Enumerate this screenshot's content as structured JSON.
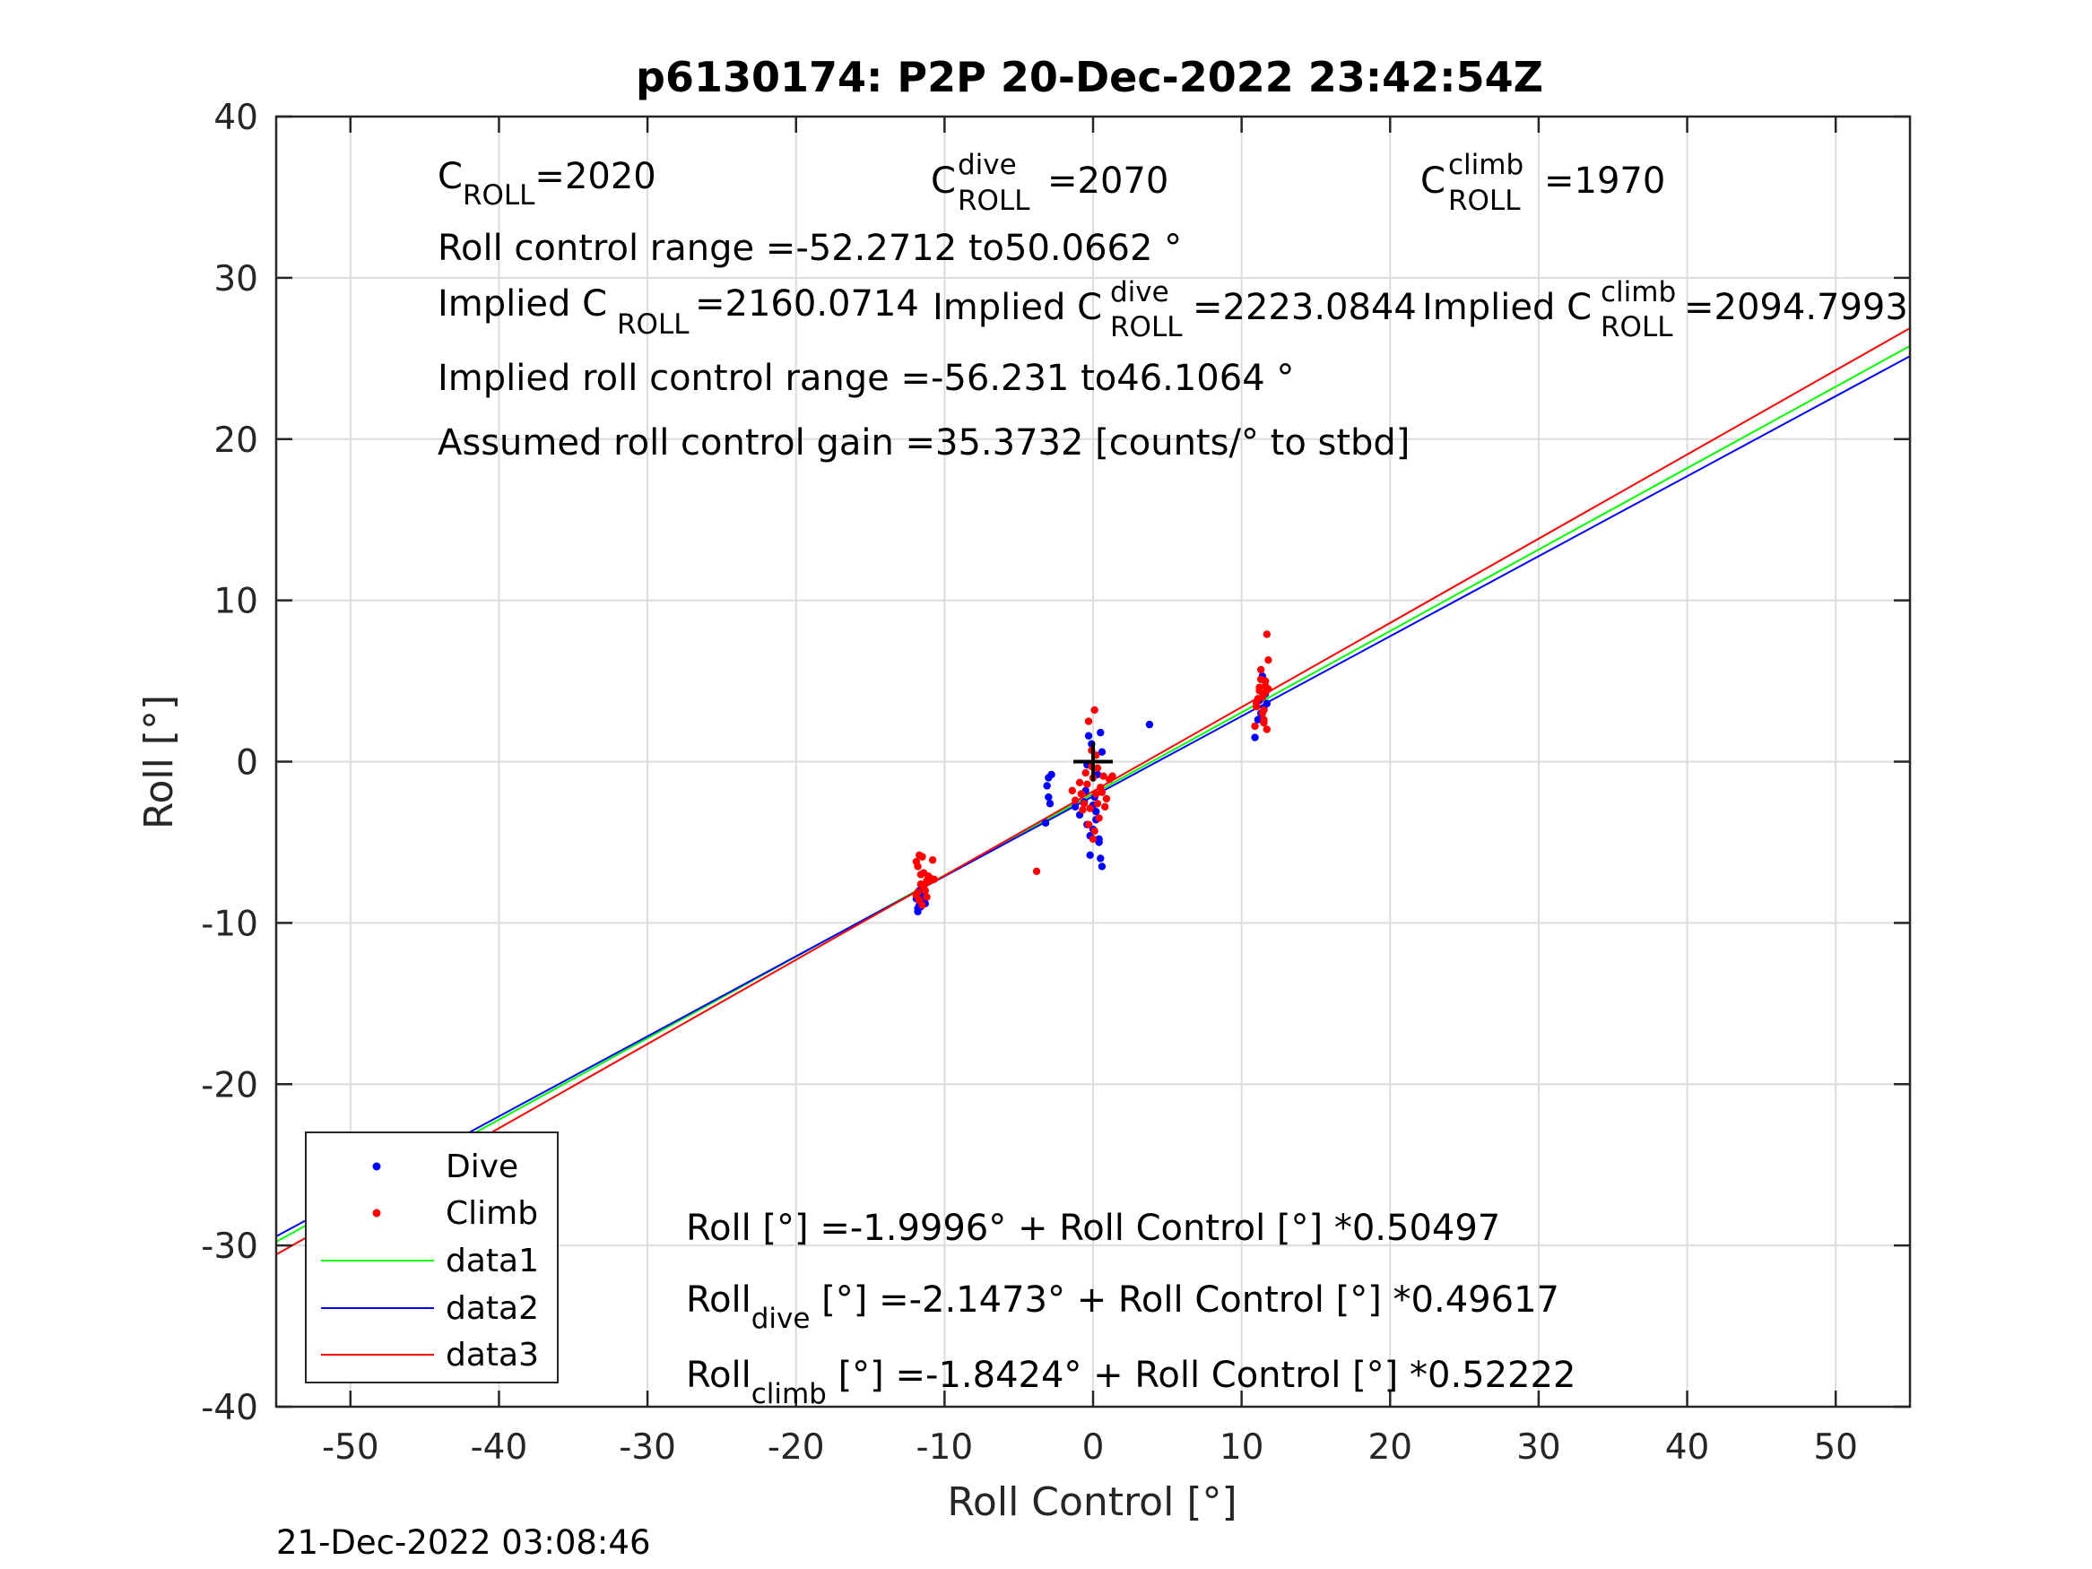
{
  "chart_data": {
    "type": "scatter",
    "title": "p6130174: P2P 20-Dec-2022 23:42:54Z",
    "xlabel": "Roll Control [°]",
    "ylabel": "Roll [°]",
    "xlim": [
      -55,
      55
    ],
    "ylim": [
      -40,
      40
    ],
    "x_ticks": [
      -50,
      -40,
      -30,
      -20,
      -10,
      0,
      10,
      20,
      30,
      40,
      50
    ],
    "y_ticks": [
      -40,
      -30,
      -20,
      -10,
      0,
      10,
      20,
      30,
      40
    ],
    "x_tick_labels": [
      "-50",
      "-40",
      "-30",
      "-20",
      "-10",
      "0",
      "10",
      "20",
      "30",
      "40",
      "50"
    ],
    "y_tick_labels": [
      "-40",
      "-30",
      "-20",
      "-10",
      "0",
      "10",
      "20",
      "30",
      "40"
    ],
    "grid": true,
    "legend_position": "bottom-left",
    "series": [
      {
        "name": "Dive",
        "kind": "points",
        "color": "#0000ff",
        "x": [
          -11.8,
          -11.7,
          -11.6,
          -11.9,
          -11.5,
          -11.8,
          -11.4,
          -11.7,
          -11.6,
          -11.3,
          -3.0,
          -3.1,
          -2.9,
          -3.2,
          -3.0,
          -2.8,
          -1.2,
          -0.9,
          -0.6,
          -0.4,
          -0.2,
          0.0,
          0.2,
          0.4,
          0.5,
          0.6,
          -0.5,
          -0.3,
          -0.1,
          0.3,
          0.1,
          -0.2,
          0.4,
          0.2,
          0.6,
          0.5,
          -0.4,
          0.0,
          3.8,
          10.9,
          11.1,
          11.3,
          11.5,
          11.2,
          11.6,
          11.4,
          11.7
        ],
        "y": [
          -9.3,
          -8.9,
          -9.0,
          -8.5,
          -8.7,
          -9.1,
          -8.2,
          -8.0,
          -8.4,
          -8.8,
          -1.0,
          -1.5,
          -2.6,
          -3.8,
          -2.2,
          -0.8,
          -2.8,
          -3.3,
          -2.5,
          -3.9,
          -4.6,
          -4.2,
          -3.1,
          -5.0,
          -6.0,
          -6.5,
          -1.8,
          1.6,
          1.1,
          -0.8,
          -2.2,
          -5.8,
          -4.8,
          -3.6,
          0.6,
          1.8,
          -0.2,
          -2.7,
          2.3,
          1.5,
          2.6,
          3.0,
          3.3,
          3.8,
          4.2,
          5.3,
          3.6
        ]
      },
      {
        "name": "Climb",
        "kind": "points",
        "color": "#ff0000",
        "x": [
          -11.9,
          -11.7,
          -11.5,
          -11.8,
          -11.6,
          -11.2,
          -11.0,
          -10.8,
          -11.4,
          -11.9,
          -11.3,
          -11.1,
          -11.6,
          -11.7,
          -11.5,
          -10.9,
          -11.8,
          -11.4,
          -10.7,
          -11.2,
          -3.8,
          -1.4,
          -1.2,
          -0.9,
          -0.7,
          -0.5,
          -0.3,
          -0.1,
          0.1,
          0.3,
          0.5,
          0.7,
          0.9,
          1.1,
          1.3,
          -0.2,
          0.0,
          0.2,
          -0.4,
          0.4,
          -0.6,
          0.6,
          -0.1,
          0.2,
          -0.3,
          0.0,
          0.3,
          0.1,
          0.8,
          -0.8,
          10.9,
          11.0,
          11.2,
          11.4,
          11.5,
          11.6,
          11.7,
          11.8,
          11.3,
          11.1,
          11.5,
          11.7,
          11.2,
          11.6,
          11.4,
          11.8,
          11.0,
          11.3,
          11.5,
          11.6
        ],
        "y": [
          -6.2,
          -5.8,
          -5.9,
          -6.5,
          -7.0,
          -7.4,
          -7.2,
          -6.1,
          -7.8,
          -8.3,
          -8.0,
          -7.1,
          -7.6,
          -8.6,
          -8.9,
          -7.3,
          -8.1,
          -6.9,
          -7.3,
          -8.4,
          -6.8,
          -1.8,
          -2.4,
          -1.3,
          -3.0,
          -0.7,
          2.5,
          0.7,
          3.2,
          -0.4,
          -1.6,
          -0.9,
          -2.3,
          -1.1,
          -0.9,
          -2.9,
          -4.8,
          -2.0,
          -1.4,
          -3.5,
          -2.6,
          -1.9,
          -0.3,
          0.4,
          -3.9,
          -1.0,
          -2.6,
          -4.3,
          -2.8,
          -2.0,
          2.2,
          3.4,
          4.6,
          4.0,
          3.2,
          4.3,
          7.9,
          6.3,
          5.7,
          3.9,
          2.6,
          2.0,
          4.4,
          5.0,
          3.0,
          4.5,
          3.6,
          5.1,
          2.4,
          4.7
        ]
      },
      {
        "name": "data1",
        "kind": "line",
        "color": "#00ff00",
        "intercept": -1.9996,
        "slope": 0.50497,
        "x": [
          -55,
          55
        ]
      },
      {
        "name": "data2",
        "kind": "line",
        "color": "#0000ff",
        "intercept": -2.1473,
        "slope": 0.49617,
        "x": [
          -55,
          55
        ]
      },
      {
        "name": "data3",
        "kind": "line",
        "color": "#ff0000",
        "intercept": -1.8424,
        "slope": 0.52222,
        "x": [
          -55,
          55
        ]
      }
    ],
    "marker": {
      "kind": "plus",
      "color": "#000000",
      "x": 0,
      "y": 0
    }
  },
  "annotations": {
    "c_roll": {
      "base": "C",
      "sub": "ROLL",
      "value": "=2020"
    },
    "c_roll_dive": {
      "base": "C",
      "sup": "dive",
      "sub": "ROLL",
      "value": "=2070"
    },
    "c_roll_climb": {
      "base": "C",
      "sup": "climb",
      "sub": "ROLL",
      "value": "=1970"
    },
    "roll_range": "Roll control range =-52.2712 to50.0662 °",
    "implied_c_roll": {
      "prefix": "Implied C",
      "sub": "ROLL",
      "value": " =2160.0714"
    },
    "implied_c_roll_dive": {
      "prefix": "Implied C",
      "sup": "dive",
      "sub": "ROLL",
      "value": " =2223.0844"
    },
    "implied_c_roll_climb": {
      "prefix": "Implied C",
      "sup": "climb",
      "sub": "ROLL",
      "value": " =2094.7993"
    },
    "implied_range": "Implied roll control range =-56.231 to46.1064 °",
    "gain": "Assumed roll control gain =35.3732 [counts/° to stbd]",
    "eq_all": "Roll [°] =-1.9996° + Roll Control [°] *0.50497",
    "eq_dive": {
      "base": "Roll",
      "sub": "dive",
      "rest": " [°] =-2.1473° + Roll Control [°] *0.49617"
    },
    "eq_climb": {
      "base": "Roll",
      "sub": "climb",
      "rest": " [°] =-1.8424° + Roll Control [°] *0.52222"
    }
  },
  "timestamp": "21-Dec-2022 03:08:46"
}
